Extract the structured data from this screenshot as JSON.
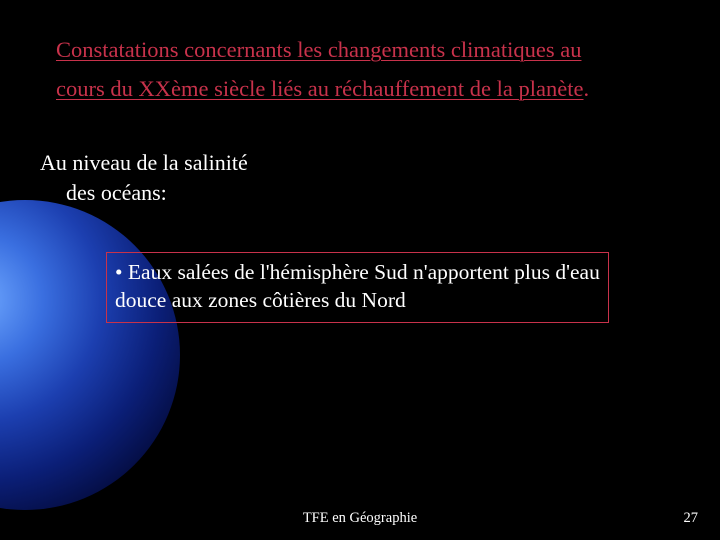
{
  "title": {
    "line1": "Constatations concernants les changements climatiques au",
    "line2_underlined": "cours du XXème siècle liés au réchauffement de la planète",
    "line2_tail": "."
  },
  "subheading": {
    "line1": "Au niveau de la salinité",
    "line2": "des océans:"
  },
  "box": {
    "text": "• Eaux salées de l'hémisphère Sud n'apportent plus d'eau douce aux zones côtières du Nord"
  },
  "footer": {
    "center": "TFE en Géographie",
    "pageNumber": "27"
  },
  "colors": {
    "background": "#000000",
    "titleColor": "#c8324b",
    "textColor": "#ffffff",
    "boxBorder": "#c8324b"
  }
}
